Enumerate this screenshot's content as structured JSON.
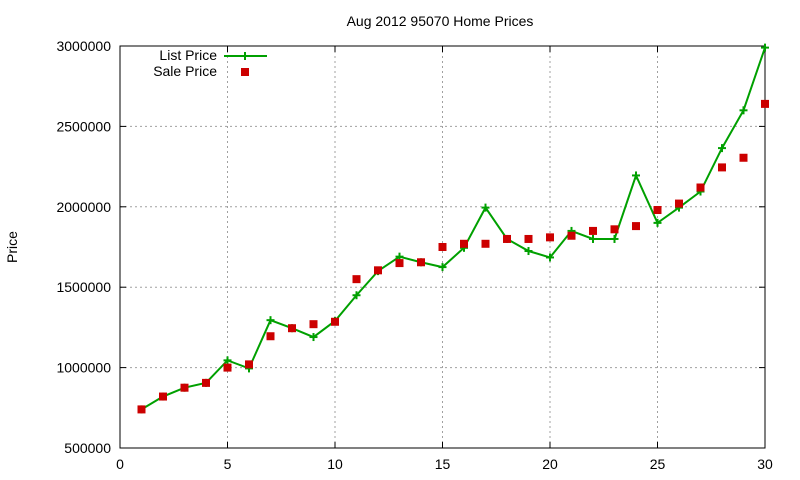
{
  "chart_data": {
    "type": "line",
    "title": "Aug 2012 95070 Home Prices",
    "xlabel": "",
    "ylabel": "Price",
    "xlim": [
      0,
      30
    ],
    "ylim": [
      500000,
      3000000
    ],
    "xticks": [
      "0",
      "5",
      "10",
      "15",
      "20",
      "25",
      "30"
    ],
    "yticks": [
      "500000",
      "1000000",
      "1500000",
      "2000000",
      "2500000",
      "3000000"
    ],
    "grid": true,
    "legend_position": "top-left",
    "x": [
      1,
      2,
      3,
      4,
      5,
      6,
      7,
      8,
      9,
      10,
      11,
      12,
      13,
      14,
      15,
      16,
      17,
      18,
      19,
      20,
      21,
      22,
      23,
      24,
      25,
      26,
      27,
      28,
      29,
      30
    ],
    "series": [
      {
        "name": "List Price",
        "style": "line-with-plus-markers",
        "color": "#00a000",
        "values": [
          740000,
          820000,
          875000,
          905000,
          1045000,
          995000,
          1295000,
          1245000,
          1190000,
          1290000,
          1450000,
          1600000,
          1690000,
          1655000,
          1625000,
          1745000,
          1995000,
          1800000,
          1725000,
          1685000,
          1850000,
          1800000,
          1800000,
          2195000,
          1900000,
          1995000,
          2095000,
          2365000,
          2600000,
          2990000
        ]
      },
      {
        "name": "Sale Price",
        "style": "square-markers",
        "color": "#cc0000",
        "values": [
          740000,
          820000,
          875000,
          905000,
          1000000,
          1020000,
          1195000,
          1245000,
          1270000,
          1285000,
          1550000,
          1605000,
          1650000,
          1655000,
          1750000,
          1770000,
          1770000,
          1800000,
          1800000,
          1810000,
          1820000,
          1850000,
          1860000,
          1880000,
          1980000,
          2020000,
          2120000,
          2245000,
          2305000,
          2640000
        ]
      }
    ]
  }
}
